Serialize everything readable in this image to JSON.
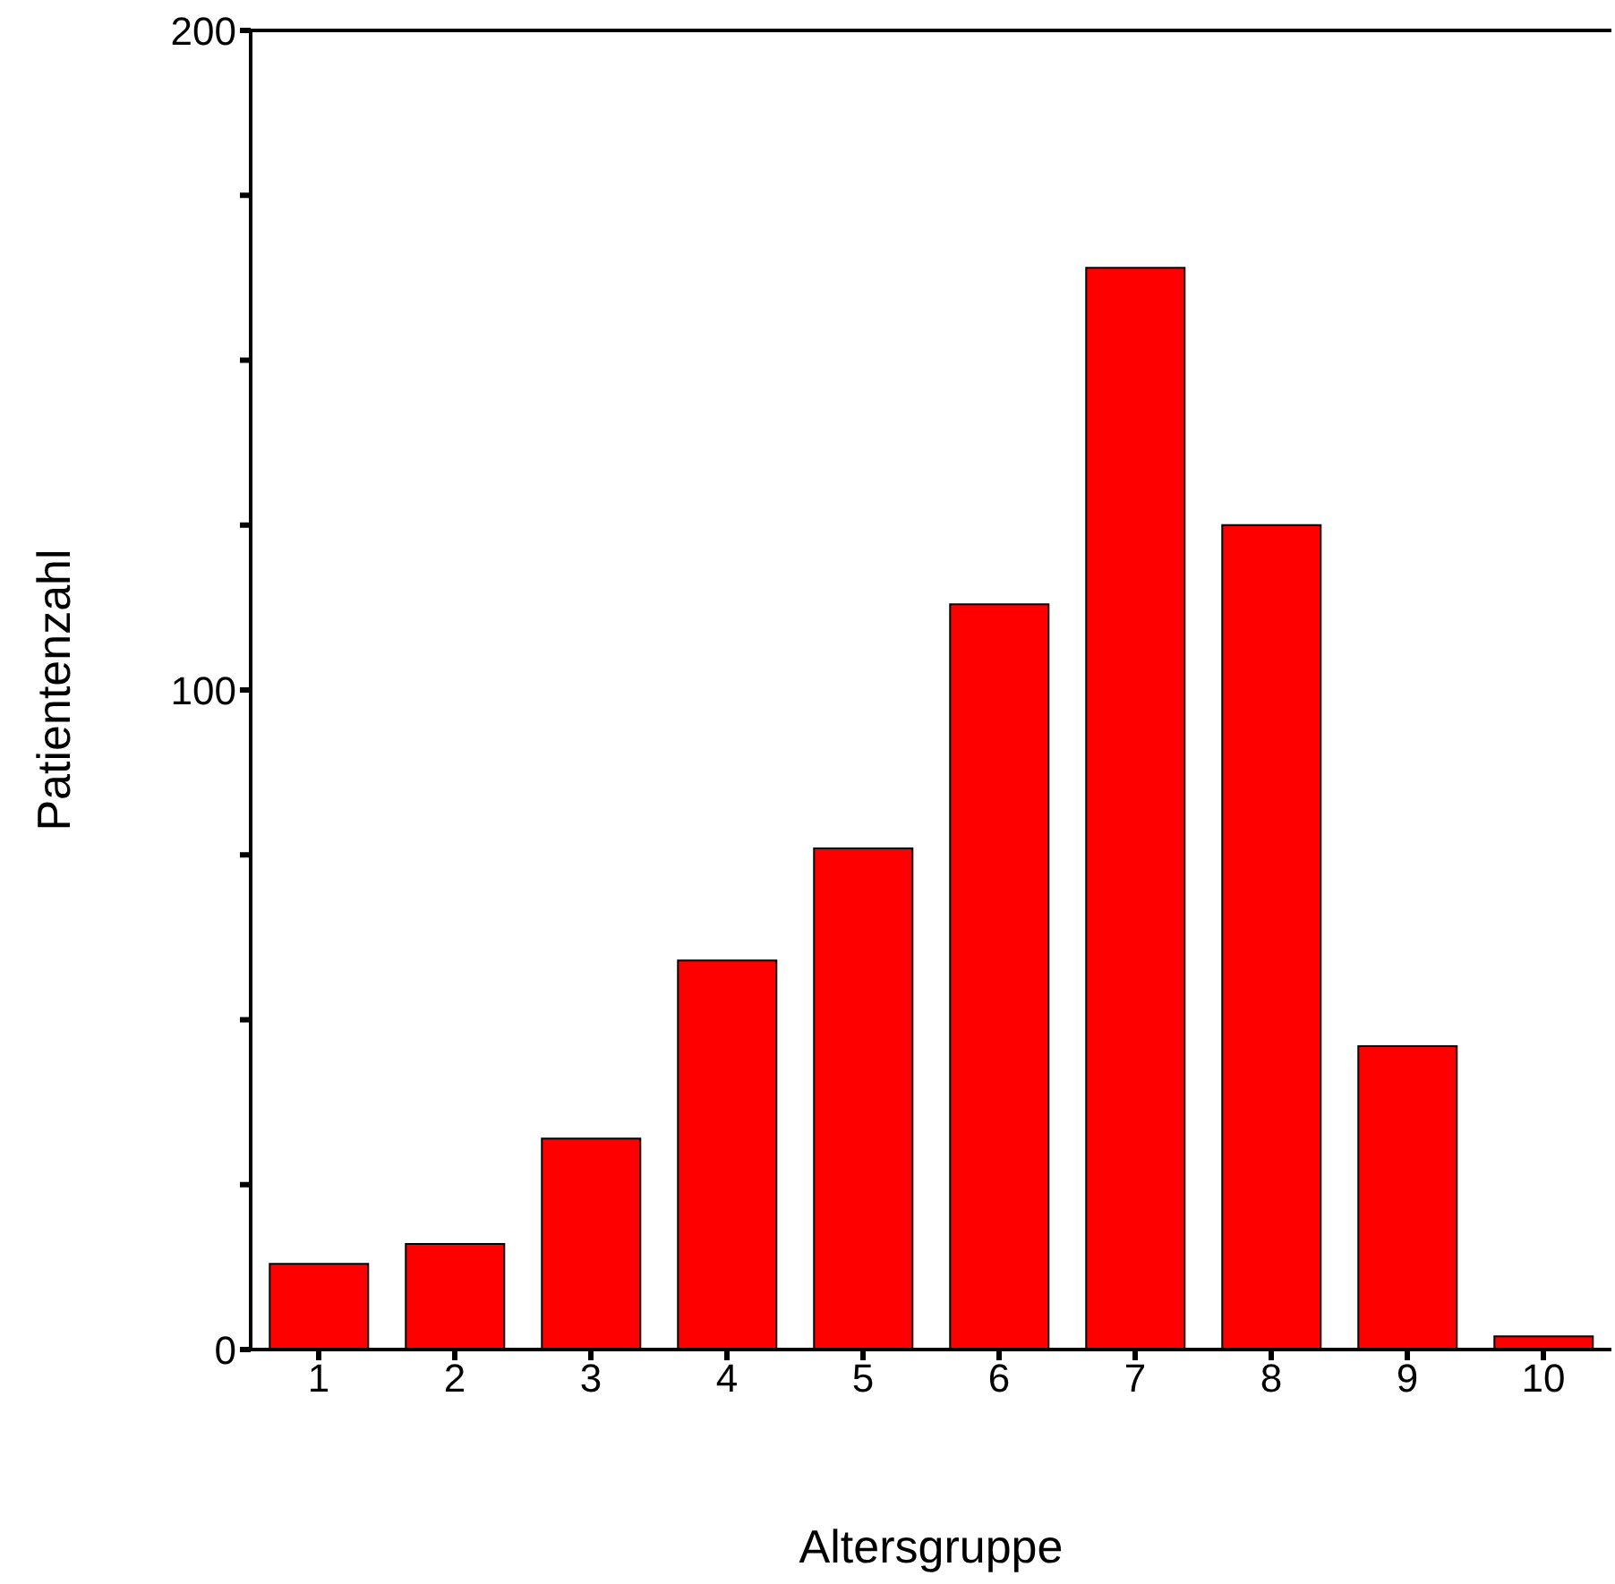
{
  "chart_data": {
    "type": "bar",
    "xlabel": "Altersgruppe",
    "ylabel": "Patientenzahl",
    "categories": [
      "1",
      "2",
      "3",
      "4",
      "5",
      "6",
      "7",
      "8",
      "9",
      "10"
    ],
    "values": [
      13,
      16,
      32,
      59,
      76,
      113,
      164,
      125,
      46,
      2
    ],
    "color": "#ff0000",
    "ylim": [
      0,
      200
    ],
    "yticks": [
      0,
      {
        "value": 25,
        "label": null
      },
      {
        "value": 50,
        "label": null
      },
      {
        "value": 75,
        "label": null
      },
      100,
      {
        "value": 125,
        "label": null
      },
      {
        "value": 150,
        "label": null
      },
      {
        "value": 175,
        "label": null
      },
      200
    ],
    "grid": false,
    "legend": false
  }
}
